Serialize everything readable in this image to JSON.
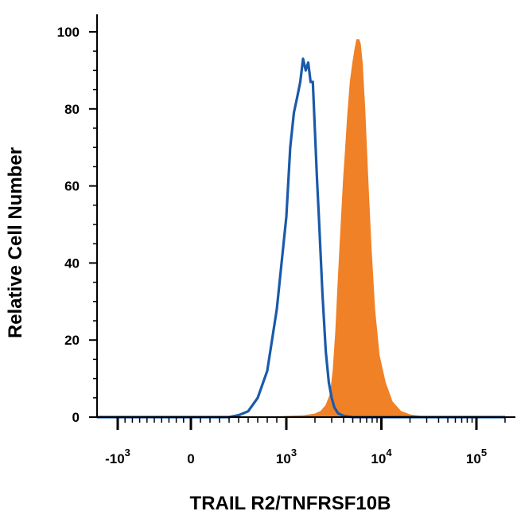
{
  "chart_data": {
    "type": "area",
    "xlabel": "TRAIL R2/TNFRSF10B",
    "ylabel": "Relative Cell Number",
    "xscale": "biexponential",
    "ylim": [
      0,
      100
    ],
    "grid": false,
    "legend": "none",
    "y_ticks": [
      "0",
      "20",
      "40",
      "60",
      "80",
      "100"
    ],
    "x_ticks": [
      {
        "value": -1000,
        "base": "-10",
        "exp": "3"
      },
      {
        "value": 0,
        "base": "0",
        "exp": ""
      },
      {
        "value": 1000,
        "base": "10",
        "exp": "3"
      },
      {
        "value": 10000,
        "base": "10",
        "exp": "4"
      },
      {
        "value": 100000,
        "base": "10",
        "exp": "5"
      }
    ],
    "series": [
      {
        "style": "filled",
        "color": "#f08127",
        "x": [
          -1500,
          800,
          1500,
          2000,
          2300,
          2600,
          2900,
          3100,
          3300,
          3500,
          3800,
          4000,
          4200,
          4400,
          4700,
          5000,
          5300,
          5500,
          5800,
          6000,
          6300,
          6700,
          7200,
          7800,
          8500,
          9500,
          11000,
          13000,
          16000,
          20000,
          30000,
          200000
        ],
        "y": [
          0,
          0,
          0.4,
          0.8,
          1.5,
          3,
          6,
          12,
          22,
          35,
          52,
          62,
          70,
          78,
          87,
          92,
          96,
          98,
          98,
          97,
          92,
          80,
          62,
          44,
          28,
          16,
          9,
          4,
          1.5,
          0.6,
          0,
          0
        ]
      },
      {
        "style": "outline",
        "color": "#1a5aaa",
        "x": [
          -1500,
          400,
          500,
          600,
          700,
          800,
          900,
          1000,
          1100,
          1200,
          1300,
          1400,
          1500,
          1600,
          1700,
          1800,
          1900,
          2000,
          2100,
          2200,
          2400,
          2600,
          2800,
          3000,
          3200,
          3500,
          4000,
          5000,
          200000
        ],
        "y": [
          0,
          0,
          0.5,
          1.5,
          5,
          12,
          28,
          52,
          70,
          79,
          83,
          87,
          93,
          90,
          92,
          87,
          87,
          74,
          62,
          52,
          32,
          17,
          9,
          5,
          2.5,
          1,
          0.3,
          0,
          0
        ]
      }
    ]
  }
}
